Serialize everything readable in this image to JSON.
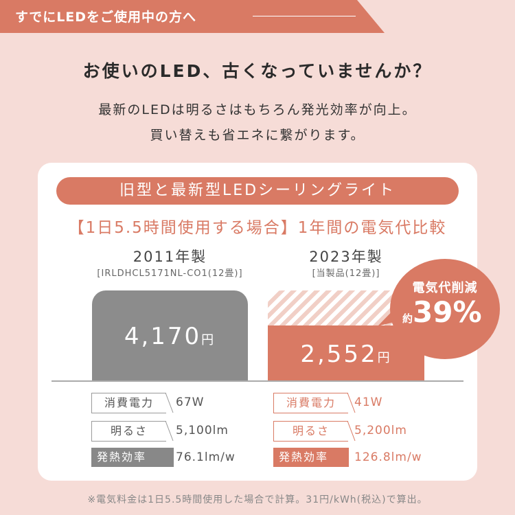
{
  "banner": {
    "text": "すでにLEDをご使用中の方へ"
  },
  "headline": "お使いのLED、古くなっていませんか？",
  "sub": [
    "最新のLEDは明るさはもちろん発光効率が向上。",
    "買い替えも省エネに繋がります。"
  ],
  "card": {
    "pill": "旧型と最新型LEDシーリングライト",
    "compare_title": "【1日5.5時間使用する場合】1年間の電気代比較",
    "old": {
      "year": "2011年製",
      "model": "[IRLDHCL5171NL-CO1(12畳)]",
      "cost": "4,170",
      "unit": "円"
    },
    "new": {
      "year": "2023年製",
      "model": "[当製品(12畳)]",
      "cost": "2,552",
      "unit": "円"
    },
    "badge": {
      "line1": "電気代削減",
      "prefix": "約",
      "value": "39%"
    },
    "specs": {
      "old": [
        {
          "label": "消費電力",
          "value": "67W"
        },
        {
          "label": "明るさ",
          "value": "5,100lm"
        },
        {
          "label": "発熱効率",
          "value": "76.1lm/w"
        }
      ],
      "new": [
        {
          "label": "消費電力",
          "value": "41W"
        },
        {
          "label": "明るさ",
          "value": "5,200lm"
        },
        {
          "label": "発熱効率",
          "value": "126.8lm/w"
        }
      ]
    }
  },
  "footnote": "※電気料金は1日5.5時間使用した場合で計算。31円/kWh(税込)で算出。",
  "colors": {
    "accent": "#d97a64",
    "background": "#f6dcd7",
    "gray_bar": "#8c8c8c"
  }
}
